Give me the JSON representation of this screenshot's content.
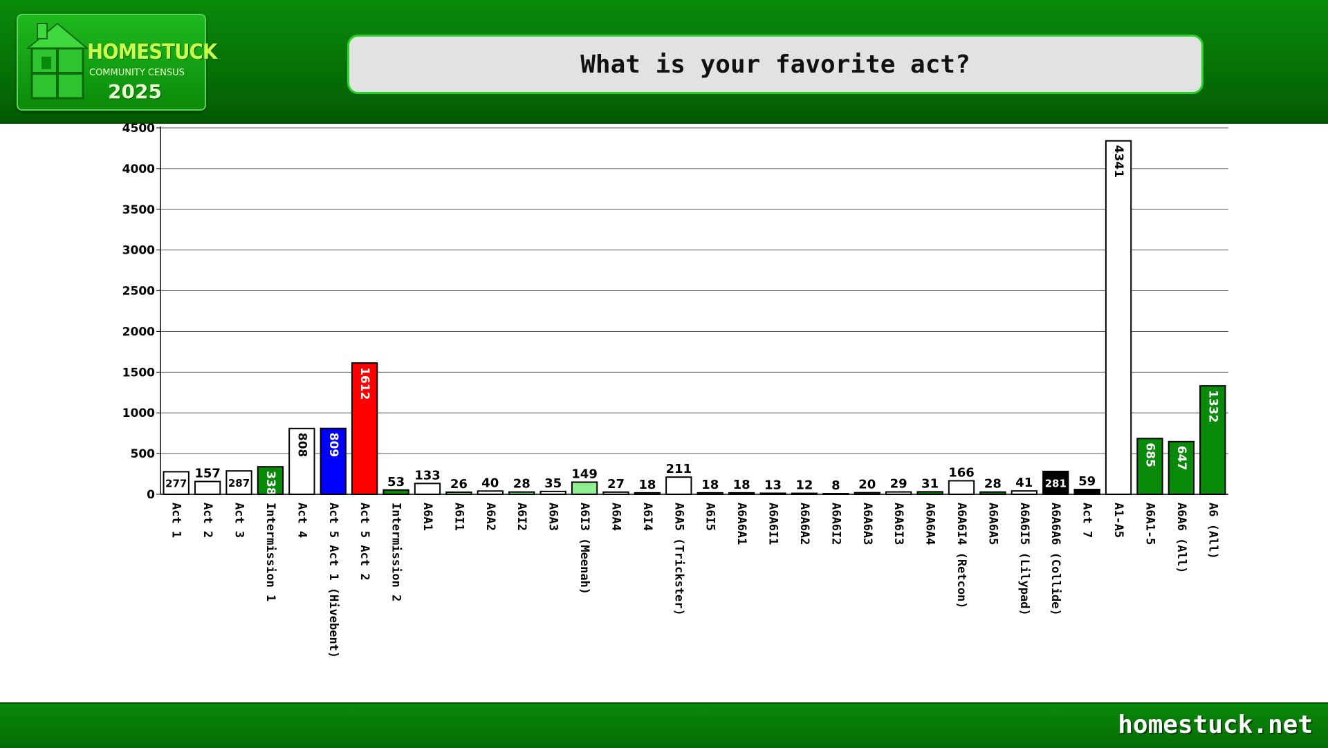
{
  "header": {
    "logo_title": "HOMESTUCK",
    "logo_subtitle": "COMMUNITY CENSUS",
    "logo_year": "2025",
    "question": "What is your favorite act?"
  },
  "footer": {
    "site": "homestuck.net"
  },
  "chart_data": {
    "type": "bar",
    "title": "What is your favorite act?",
    "xlabel": "",
    "ylabel": "",
    "ylim": [
      0,
      4500
    ],
    "yticks": [
      0,
      500,
      1000,
      1500,
      2000,
      2500,
      3000,
      3500,
      4000,
      4500
    ],
    "grid": true,
    "categories": [
      "Act 1",
      "Act 2",
      "Act 3",
      "Intermission 1",
      "Act 4",
      "Act 5 Act 1 (Hivebent)",
      "Act 5 Act 2",
      "Intermission 2",
      "A6A1",
      "A6I1",
      "A6A2",
      "A6I2",
      "A6A3",
      "A6I3 (Meenah)",
      "A6A4",
      "A6I4",
      "A6A5 (Trickster)",
      "A6I5",
      "A6A6A1",
      "A6A6I1",
      "A6A6A2",
      "A6A6I2",
      "A6A6A3",
      "A6A6I3",
      "A6A6A4",
      "A6A6I4 (Retcon)",
      "A6A6A5",
      "A6A6I5 (Lilypad)",
      "A6A6A6 (Collide)",
      "Act 7",
      "A1-A5",
      "A6A1-5",
      "A6A6 (All)",
      "A6 (All)"
    ],
    "values": [
      277,
      157,
      287,
      338,
      808,
      809,
      1612,
      53,
      133,
      26,
      40,
      28,
      35,
      149,
      27,
      18,
      211,
      18,
      18,
      13,
      12,
      8,
      20,
      29,
      31,
      166,
      28,
      41,
      281,
      59,
      4341,
      685,
      647,
      1332
    ],
    "colors": [
      "#ffffff",
      "#ffffff",
      "#ffffff",
      "#0a8a0a",
      "#ffffff",
      "#0000ff",
      "#ff0000",
      "#0a8a0a",
      "#ffffff",
      "#90ee90",
      "#ffffff",
      "#90ee90",
      "#ffffff",
      "#90ee90",
      "#ffffff",
      "#90ee90",
      "#ffffff",
      "#90ee90",
      "#0a8a0a",
      "#111111",
      "#0a8a0a",
      "#111111",
      "#0a8a0a",
      "#ffffff",
      "#0a8a0a",
      "#ffffff",
      "#0a8a0a",
      "#ffffff",
      "#000000",
      "#000000",
      "#ffffff",
      "#0a8a0a",
      "#0a8a0a",
      "#0a8a0a"
    ],
    "label_inside": [
      true,
      false,
      true,
      true,
      true,
      true,
      true,
      false,
      false,
      false,
      false,
      false,
      false,
      false,
      false,
      false,
      false,
      false,
      false,
      false,
      false,
      false,
      false,
      false,
      false,
      false,
      false,
      false,
      true,
      false,
      true,
      true,
      true,
      true
    ],
    "label_vertical": [
      false,
      false,
      false,
      true,
      true,
      true,
      true,
      false,
      false,
      false,
      false,
      false,
      false,
      false,
      false,
      false,
      false,
      false,
      false,
      false,
      false,
      false,
      false,
      false,
      false,
      false,
      false,
      false,
      false,
      false,
      true,
      true,
      true,
      true
    ],
    "label_color": [
      "#000000",
      "#000000",
      "#000000",
      "#ffffff",
      "#000000",
      "#ffffff",
      "#ffffff",
      "#000000",
      "#000000",
      "#000000",
      "#000000",
      "#000000",
      "#000000",
      "#000000",
      "#000000",
      "#000000",
      "#000000",
      "#000000",
      "#000000",
      "#000000",
      "#000000",
      "#000000",
      "#000000",
      "#000000",
      "#000000",
      "#000000",
      "#000000",
      "#000000",
      "#ffffff",
      "#000000",
      "#000000",
      "#ffffff",
      "#ffffff",
      "#ffffff"
    ]
  }
}
